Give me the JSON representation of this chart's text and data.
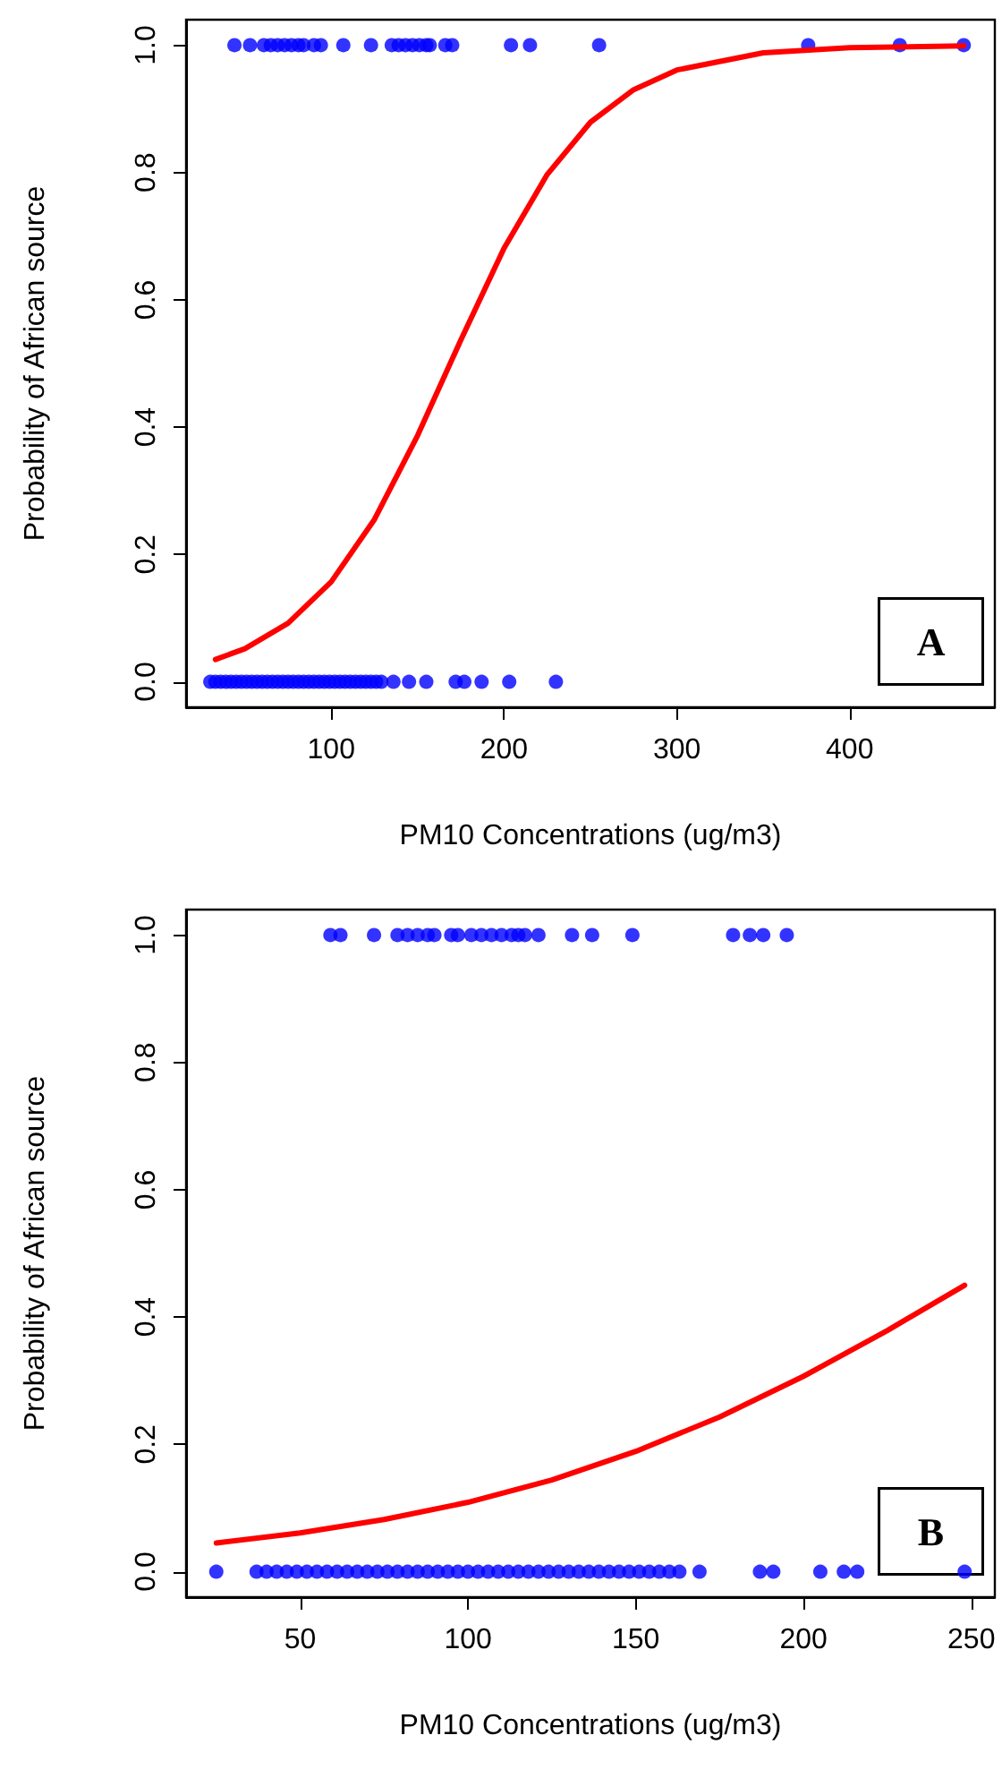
{
  "chart_data": [
    {
      "type": "scatter",
      "xlabel": "PM10 Concentrations (ug/m3)",
      "ylabel": "Probability of African source",
      "annotations": [
        "A"
      ],
      "marker": "circle",
      "xlim": [
        16,
        484
      ],
      "xticks": [
        100,
        200,
        300,
        400
      ],
      "ylim": [
        -0.04,
        1.04
      ],
      "yticks": [
        {
          "value": 0,
          "label": "0.0"
        },
        {
          "value": 0.2,
          "label": "0.2"
        },
        {
          "value": 0.4,
          "label": "0.4"
        },
        {
          "value": 0.6,
          "label": "0.6"
        },
        {
          "value": 0.8,
          "label": "0.8"
        },
        {
          "value": 1,
          "label": "1.0"
        }
      ],
      "series": [
        {
          "color": "#0000ff",
          "x": [
            44,
            53,
            61,
            65,
            69,
            73,
            77,
            81,
            84,
            90,
            94,
            107,
            123,
            135,
            139,
            143,
            147,
            151,
            155,
            157,
            166,
            170,
            204,
            215,
            255,
            376,
            429,
            466,
            30,
            33,
            36,
            39,
            42,
            45,
            48,
            51,
            54,
            57,
            60,
            63,
            66,
            69,
            72,
            75,
            78,
            81,
            84,
            87,
            90,
            93,
            96,
            99,
            102,
            105,
            108,
            111,
            114,
            117,
            120,
            123,
            126,
            129,
            136,
            145,
            155,
            172,
            177,
            187,
            203,
            230
          ],
          "values": [
            1,
            1,
            1,
            1,
            1,
            1,
            1,
            1,
            1,
            1,
            1,
            1,
            1,
            1,
            1,
            1,
            1,
            1,
            1,
            1,
            1,
            1,
            1,
            1,
            1,
            1,
            1,
            1,
            0,
            0,
            0,
            0,
            0,
            0,
            0,
            0,
            0,
            0,
            0,
            0,
            0,
            0,
            0,
            0,
            0,
            0,
            0,
            0,
            0,
            0,
            0,
            0,
            0,
            0,
            0,
            0,
            0,
            0,
            0,
            0,
            0,
            0,
            0,
            0,
            0,
            0,
            0,
            0,
            0,
            0
          ]
        },
        {
          "type": "line",
          "color": "#ff0000",
          "marker": "none",
          "x": [
            33,
            50,
            75,
            100,
            125,
            150,
            175,
            200,
            225,
            250,
            275,
            300,
            350,
            400,
            466
          ],
          "values": [
            0.035,
            0.052,
            0.092,
            0.157,
            0.255,
            0.387,
            0.537,
            0.681,
            0.797,
            0.879,
            0.93,
            0.961,
            0.988,
            0.996,
            0.999
          ]
        }
      ]
    },
    {
      "type": "scatter",
      "xlabel": "PM10 Concentrations (ug/m3)",
      "ylabel": "Probability of African source",
      "annotations": [
        "B"
      ],
      "marker": "circle",
      "xlim": [
        16,
        257
      ],
      "xticks": [
        50,
        100,
        150,
        200,
        250
      ],
      "ylim": [
        -0.04,
        1.04
      ],
      "yticks": [
        {
          "value": 0,
          "label": "0.0"
        },
        {
          "value": 0.2,
          "label": "0.2"
        },
        {
          "value": 0.4,
          "label": "0.4"
        },
        {
          "value": 0.6,
          "label": "0.6"
        },
        {
          "value": 0.8,
          "label": "0.8"
        },
        {
          "value": 1,
          "label": "1.0"
        }
      ],
      "series": [
        {
          "color": "#0000ff",
          "x": [
            59,
            62,
            72,
            79,
            82,
            85,
            88,
            90,
            95,
            97,
            101,
            104,
            107,
            110,
            113,
            115,
            117,
            121,
            131,
            137,
            149,
            179,
            184,
            188,
            195,
            25,
            37,
            40,
            43,
            46,
            49,
            52,
            55,
            58,
            61,
            64,
            67,
            70,
            73,
            76,
            79,
            82,
            85,
            88,
            91,
            94,
            97,
            100,
            103,
            106,
            109,
            112,
            115,
            118,
            121,
            124,
            127,
            130,
            133,
            136,
            139,
            142,
            145,
            148,
            151,
            154,
            157,
            160,
            163,
            169,
            187,
            191,
            205,
            212,
            216,
            248
          ],
          "values": [
            1,
            1,
            1,
            1,
            1,
            1,
            1,
            1,
            1,
            1,
            1,
            1,
            1,
            1,
            1,
            1,
            1,
            1,
            1,
            1,
            1,
            1,
            1,
            1,
            1,
            0,
            0,
            0,
            0,
            0,
            0,
            0,
            0,
            0,
            0,
            0,
            0,
            0,
            0,
            0,
            0,
            0,
            0,
            0,
            0,
            0,
            0,
            0,
            0,
            0,
            0,
            0,
            0,
            0,
            0,
            0,
            0,
            0,
            0,
            0,
            0,
            0,
            0,
            0,
            0,
            0,
            0,
            0,
            0,
            0,
            0,
            0,
            0,
            0,
            0,
            0
          ]
        },
        {
          "type": "line",
          "color": "#ff0000",
          "marker": "none",
          "x": [
            25,
            50,
            75,
            100,
            125,
            150,
            175,
            200,
            225,
            248
          ],
          "values": [
            0.045,
            0.061,
            0.082,
            0.109,
            0.144,
            0.189,
            0.243,
            0.307,
            0.379,
            0.45
          ]
        }
      ]
    }
  ]
}
